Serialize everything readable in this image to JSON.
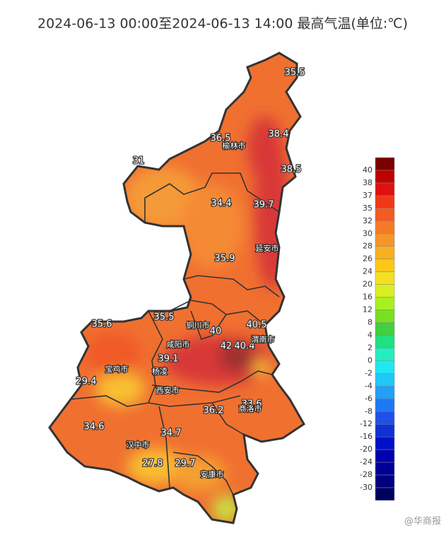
{
  "title": "2024-06-13 00:00至2024-06-13 14:00 最高气温(单位:℃)",
  "temperatures": [
    "35.5",
    "36.5",
    "38.4",
    "38.5",
    "31",
    "34.4",
    "39.7",
    "35.9",
    "35.5",
    "40",
    "40.5",
    "42",
    "40.4",
    "35.6",
    "39.1",
    "29.4",
    "36.2",
    "33.6",
    "34.6",
    "34.7",
    "27.8",
    "29.7"
  ],
  "cities": [
    "榆林市",
    "延安市",
    "铜川市",
    "渭南市",
    "咸阳市",
    "宝鸡市",
    "杨凌",
    "西安市",
    "商洛市",
    "汉中市",
    "安康市"
  ],
  "legend": {
    "labels": [
      40,
      38,
      37,
      35,
      32,
      30,
      28,
      26,
      24,
      20,
      16,
      12,
      8,
      4,
      2,
      0,
      -2,
      -4,
      -6,
      -8,
      -12,
      -16,
      -20,
      -24,
      -28,
      -30
    ],
    "colors": [
      "#7a0000",
      "#c00000",
      "#e01010",
      "#f03818",
      "#f55a20",
      "#f57a28",
      "#f5962a",
      "#f8b020",
      "#fcc81a",
      "#f4e020",
      "#d8f020",
      "#a8f020",
      "#78e020",
      "#40d040",
      "#20e080",
      "#20f0c0",
      "#20e8f0",
      "#20c8f8",
      "#20a0f8",
      "#2078f0",
      "#2050e8",
      "#1030d8",
      "#0010c8",
      "#0000b0",
      "#000098",
      "#000080",
      "#000060"
    ]
  },
  "watermark": "@华商报"
}
